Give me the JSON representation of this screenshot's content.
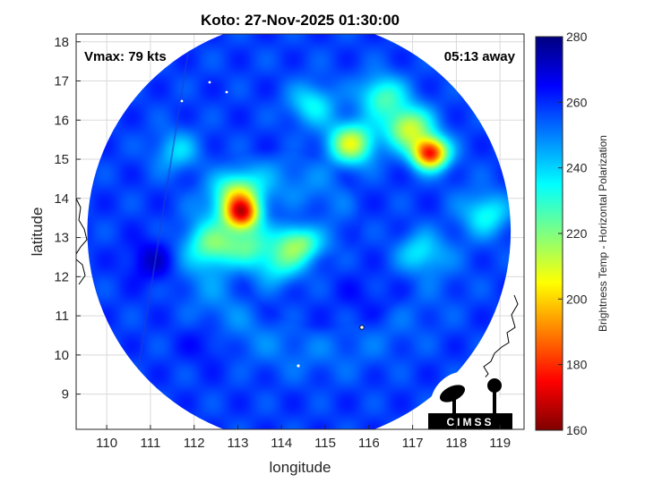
{
  "chart_data": {
    "type": "heatmap",
    "title": "Koto: 27-Nov-2025 01:30:00",
    "xlabel": "longitude",
    "ylabel": "latitude",
    "xlim": [
      109.3,
      119.55
    ],
    "ylim": [
      8.1,
      18.2
    ],
    "x_ticks": [
      110,
      111,
      112,
      113,
      114,
      115,
      116,
      117,
      118,
      119
    ],
    "y_ticks": [
      9,
      10,
      11,
      12,
      13,
      14,
      15,
      16,
      17,
      18
    ],
    "grid": true,
    "annotations": {
      "vmax": "Vmax: 79 kts",
      "away": "05:13 away"
    },
    "colorbar": {
      "label": "Brightness Temp - Horizontal Polarization",
      "ticks": [
        160,
        180,
        200,
        220,
        240,
        260,
        280
      ],
      "range": [
        160,
        280
      ],
      "colormap": "jet"
    },
    "field": {
      "background_value": 258,
      "swath_center": [
        114.4,
        13.15
      ],
      "swath_radius_deg": 5.4,
      "features": [
        {
          "lon": 113.1,
          "lat": 13.6,
          "value": 193
        },
        {
          "lon": 113.0,
          "lat": 14.1,
          "value": 222
        },
        {
          "lon": 113.2,
          "lat": 12.8,
          "value": 228
        },
        {
          "lon": 114.4,
          "lat": 12.9,
          "value": 213
        },
        {
          "lon": 112.4,
          "lat": 12.8,
          "value": 232
        },
        {
          "lon": 113.9,
          "lat": 12.3,
          "value": 236
        },
        {
          "lon": 117.4,
          "lat": 15.15,
          "value": 178
        },
        {
          "lon": 115.6,
          "lat": 15.4,
          "value": 210
        },
        {
          "lon": 116.9,
          "lat": 15.8,
          "value": 212
        },
        {
          "lon": 116.3,
          "lat": 16.6,
          "value": 228
        },
        {
          "lon": 114.7,
          "lat": 16.4,
          "value": 235
        },
        {
          "lon": 111.6,
          "lat": 15.2,
          "value": 240
        },
        {
          "lon": 117.2,
          "lat": 12.6,
          "value": 236
        },
        {
          "lon": 118.7,
          "lat": 13.6,
          "value": 234
        },
        {
          "lon": 111.0,
          "lat": 12.4,
          "value": 270
        },
        {
          "lon": 114.6,
          "lat": 13.2,
          "value": 272
        },
        {
          "lon": 115.8,
          "lat": 11.5,
          "value": 262
        },
        {
          "lon": 112.3,
          "lat": 10.3,
          "value": 264
        }
      ]
    }
  },
  "logo": {
    "text": "CIMSS",
    "colors": {
      "background": "#ffffff",
      "ink": "#000000"
    }
  },
  "colors": {
    "coastline": "#000000",
    "grid": "#d9d9d9",
    "axes": "#262626"
  }
}
